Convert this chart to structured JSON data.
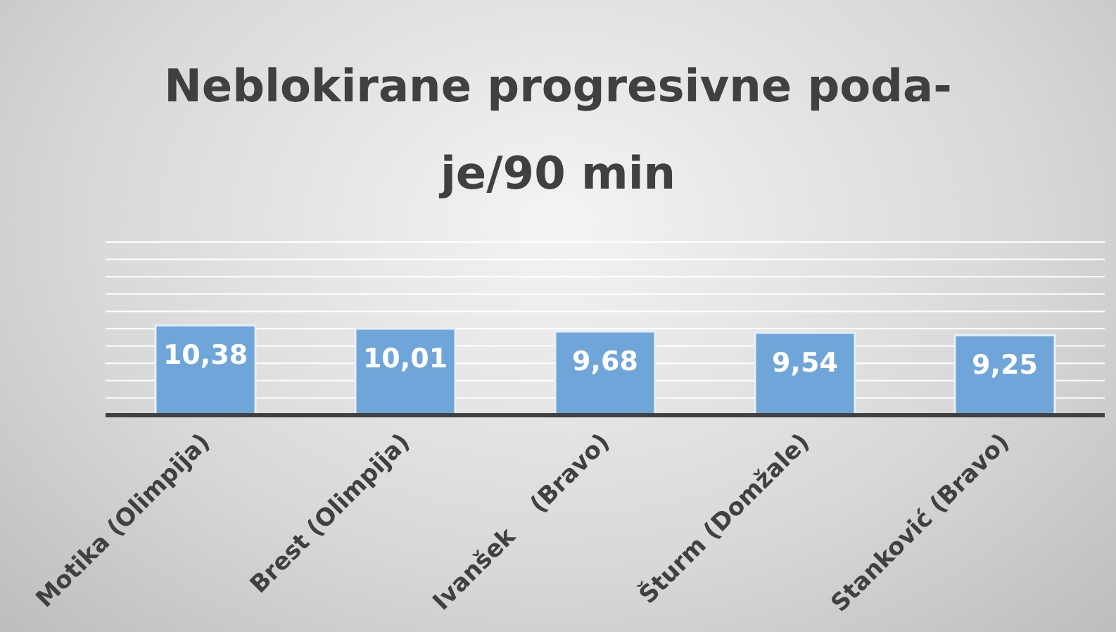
{
  "chart_data": {
    "type": "bar",
    "title": "Neblokirane progresivne poda-je/90 min",
    "categories": [
      "Motika (Olimpija)",
      "Brest (Olimpija)",
      "Ivanšek    (Bravo)",
      "Šturm (Domžale)",
      "Stanković (Bravo)"
    ],
    "values": [
      10.38,
      10.01,
      9.68,
      9.54,
      9.25
    ],
    "color": "#6fa5d9",
    "value_labels": [
      "10,38",
      "10,01",
      "9,68",
      "9,54",
      "9,25"
    ],
    "tick_labels": "x",
    "grid": "y"
  }
}
